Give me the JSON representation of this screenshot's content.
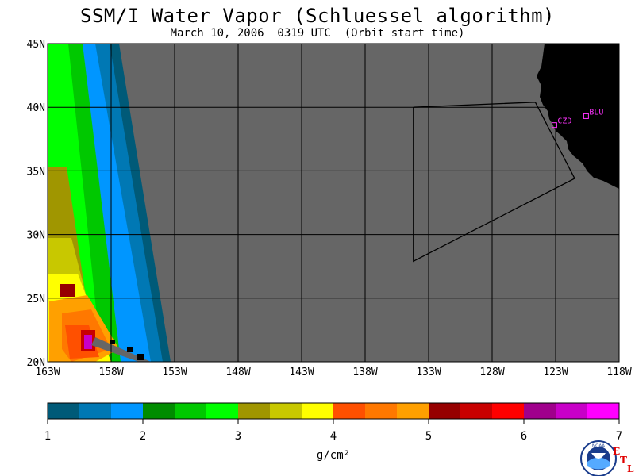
{
  "title": "SSM/I Water Vapor (Schluessel algorithm)",
  "subtitle": "March 10, 2006  0319 UTC  (Orbit start time)",
  "map": {
    "lon_range": [
      -163,
      -118
    ],
    "lat_range": [
      20,
      45
    ],
    "lon_ticks": [
      {
        "value": -163,
        "label": "163W"
      },
      {
        "value": -158,
        "label": "158W"
      },
      {
        "value": -153,
        "label": "153W"
      },
      {
        "value": -148,
        "label": "148W"
      },
      {
        "value": -143,
        "label": "143W"
      },
      {
        "value": -138,
        "label": "138W"
      },
      {
        "value": -133,
        "label": "133W"
      },
      {
        "value": -128,
        "label": "128W"
      },
      {
        "value": -123,
        "label": "123W"
      },
      {
        "value": -118,
        "label": "118W"
      }
    ],
    "lat_ticks": [
      {
        "value": 45,
        "label": "45N"
      },
      {
        "value": 40,
        "label": "40N"
      },
      {
        "value": 35,
        "label": "35N"
      },
      {
        "value": 30,
        "label": "30N"
      },
      {
        "value": 25,
        "label": "25N"
      },
      {
        "value": 20,
        "label": "20N"
      }
    ],
    "grid": true,
    "background_color": "#666666",
    "land_color": "#000000",
    "stations": [
      {
        "label": "CZD",
        "lon": -123.1,
        "lat": 38.6
      },
      {
        "label": "BLU",
        "lon": -120.6,
        "lat": 39.3
      }
    ],
    "outline_polygon": [
      {
        "lon": -134.2,
        "lat": 40.0
      },
      {
        "lon": -124.6,
        "lat": 40.4
      },
      {
        "lon": -121.5,
        "lat": 34.4
      },
      {
        "lon": -134.2,
        "lat": 27.9
      }
    ]
  },
  "colorbar": {
    "unit": "g/cm²",
    "min": 1,
    "max": 7,
    "tick_labels": [
      "1",
      "2",
      "3",
      "4",
      "5",
      "6",
      "7"
    ],
    "colors": [
      "#005a78",
      "#0078b4",
      "#0096ff",
      "#008c00",
      "#00c800",
      "#00ff00",
      "#a09600",
      "#c8c800",
      "#ffff00",
      "#ff5000",
      "#ff7800",
      "#ffa000",
      "#960000",
      "#c80000",
      "#ff0000",
      "#a0008c",
      "#c800c8",
      "#ff00ff"
    ]
  },
  "logos": {
    "noaa": "NOAA",
    "etl": [
      "E",
      "T",
      "L"
    ]
  }
}
